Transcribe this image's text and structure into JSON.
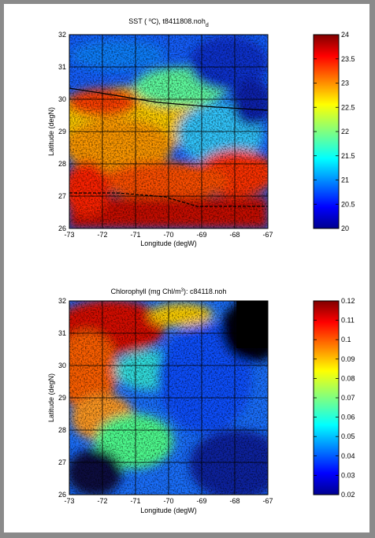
{
  "chart_data": [
    {
      "type": "heatmap",
      "title_main": "SST ( ",
      "title_deg": "o",
      "title_unit": "C), t8411808.noh",
      "title_sub": "d",
      "xlabel": "Longitude (degW)",
      "ylabel": "Latitude (degN)",
      "xlim": [
        -73,
        -67
      ],
      "ylim": [
        26,
        32
      ],
      "x_ticks": [
        "-73",
        "-72",
        "-71",
        "-70",
        "-69",
        "-68",
        "-67"
      ],
      "y_ticks": [
        "26",
        "27",
        "28",
        "29",
        "30",
        "31",
        "32"
      ],
      "grid": true,
      "colormap": "jet",
      "colorbar_range": [
        20,
        24
      ],
      "colorbar_ticks": [
        "20",
        "20.5",
        "21",
        "21.5",
        "22",
        "22.5",
        "23",
        "23.5",
        "24"
      ]
    },
    {
      "type": "heatmap",
      "title_main": "Chlorophyll (mg Chl/m",
      "title_sup": "3",
      "title_rest": "): c84118.noh",
      "xlabel": "Longitude (degW)",
      "ylabel": "Latitude (degN)",
      "xlim": [
        -73,
        -67
      ],
      "ylim": [
        26,
        32
      ],
      "x_ticks": [
        "-73",
        "-72",
        "-71",
        "-70",
        "-69",
        "-68",
        "-67"
      ],
      "y_ticks": [
        "26",
        "27",
        "28",
        "29",
        "30",
        "31",
        "32"
      ],
      "grid": true,
      "colormap": "jet",
      "colorbar_range": [
        0.02,
        0.12
      ],
      "colorbar_ticks": [
        "0.02",
        "0.03",
        "0.04",
        "0.05",
        "0.06",
        "0.07",
        "0.08",
        "0.09",
        "0.1",
        "0.11",
        "0.12"
      ]
    }
  ]
}
